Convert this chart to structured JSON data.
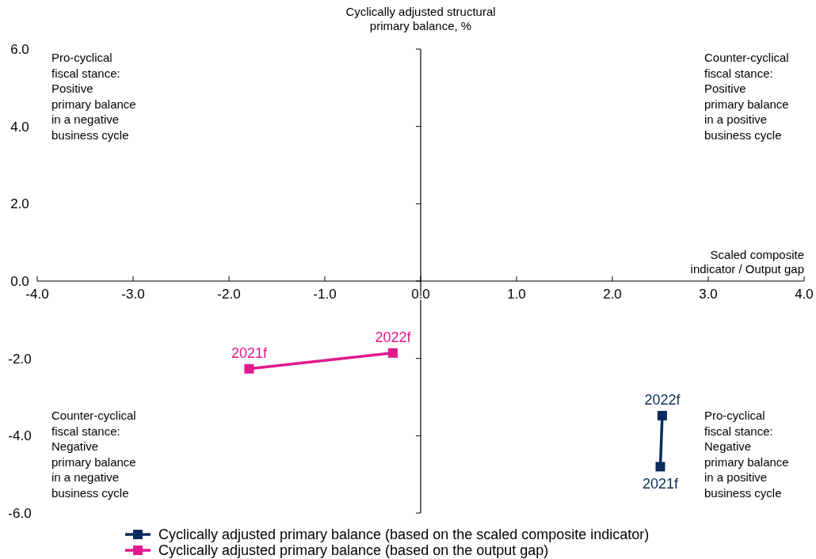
{
  "chart_data": {
    "type": "line",
    "ylabel": "Cyclically adjusted structural primary balance, %",
    "xlabel": "Scaled composite indicator / Output gap",
    "xlim": [
      -4,
      4
    ],
    "xticks": [
      {
        "value": -4,
        "label": "-4.0"
      },
      {
        "value": -3,
        "label": "-3.0"
      },
      {
        "value": -2,
        "label": "-2.0"
      },
      {
        "value": -1,
        "label": "-1.0"
      },
      {
        "value": 0,
        "label": "0.0"
      },
      {
        "value": 1,
        "label": "1.0"
      },
      {
        "value": 2,
        "label": "2.0"
      },
      {
        "value": 3,
        "label": "3.0"
      },
      {
        "value": 4,
        "label": "4.0"
      }
    ],
    "ylim": [
      -6,
      6
    ],
    "yticks": [
      {
        "value": -6,
        "label": "-6.0"
      },
      {
        "value": -4,
        "label": "-4.0"
      },
      {
        "value": -2,
        "label": "-2.0"
      },
      {
        "value": 0,
        "label": "0.0"
      },
      {
        "value": 2,
        "label": "2.0"
      },
      {
        "value": 4,
        "label": "4.0"
      },
      {
        "value": 6,
        "label": "6.0"
      }
    ],
    "series": [
      {
        "name": "Cyclically adjusted primary balance (based on the scaled composite indicator)",
        "color": "#0b2c5a",
        "x": [
          2.5,
          2.52
        ],
        "values": [
          -4.8,
          -3.48
        ]
      },
      {
        "name": "Cyclically adjusted primary balance (based on the output gap)",
        "color": "#e0198f",
        "x": [
          -1.79,
          -0.29
        ],
        "values": [
          -2.27,
          -1.86
        ]
      }
    ],
    "annotations": [
      "Pro-cyclical fiscal stance: Positive primary balance in a negative business cycle",
      "Counter-cyclical fiscal stance: Positive primary balance in a positive business cycle",
      "Counter-cyclical fiscal stance: Negative primary balance in a negative business cycle",
      "Pro-cyclical fiscal stance: Negative primary balance in a positive business cycle",
      {
        "text": "2021f",
        "x": 2.5,
        "y": -4.8
      },
      {
        "text": "2022f",
        "x": 2.52,
        "y": -3.48
      },
      {
        "text": "2021f",
        "x": -1.79,
        "y": -2.27
      },
      {
        "text": "2022f",
        "x": -0.29,
        "y": -1.86
      }
    ],
    "legend": "bottom",
    "marker": "square",
    "line_style": "solid"
  }
}
